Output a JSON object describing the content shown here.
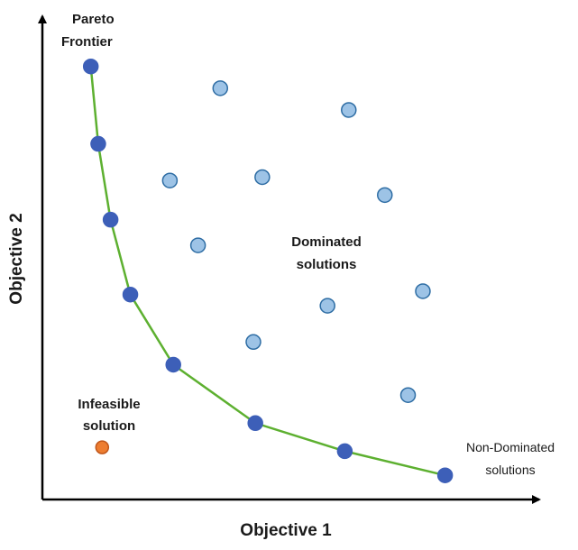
{
  "chart_data": {
    "type": "scatter",
    "title": "",
    "xlabel": "Objective 1",
    "ylabel": "Objective 2",
    "xlim": [
      0,
      100
    ],
    "ylim": [
      0,
      100
    ],
    "grid": false,
    "colors": {
      "axis": "#000000",
      "frontier_line": "#5db030",
      "non_dominated": "#3d5fb8",
      "dominated": "#9dc3e6",
      "dominated_stroke": "#2e6da4",
      "infeasible": "#ed7d31",
      "infeasible_stroke": "#c0561a"
    },
    "series": [
      {
        "name": "Non-Dominated solutions",
        "connected": true,
        "points": [
          {
            "x": 9.8,
            "y": 89.6
          },
          {
            "x": 11.3,
            "y": 73.6
          },
          {
            "x": 13.8,
            "y": 57.9
          },
          {
            "x": 17.8,
            "y": 42.4
          },
          {
            "x": 26.5,
            "y": 27.9
          },
          {
            "x": 43.1,
            "y": 15.8
          },
          {
            "x": 61.2,
            "y": 10.0
          },
          {
            "x": 81.5,
            "y": 5.0
          }
        ]
      },
      {
        "name": "Dominated solutions",
        "connected": false,
        "points": [
          {
            "x": 36.0,
            "y": 85.1
          },
          {
            "x": 62.0,
            "y": 80.6
          },
          {
            "x": 25.8,
            "y": 66.0
          },
          {
            "x": 44.5,
            "y": 66.7
          },
          {
            "x": 69.3,
            "y": 63.0
          },
          {
            "x": 31.5,
            "y": 52.6
          },
          {
            "x": 57.7,
            "y": 40.1
          },
          {
            "x": 77.0,
            "y": 43.1
          },
          {
            "x": 42.7,
            "y": 32.6
          },
          {
            "x": 74.0,
            "y": 21.6
          }
        ]
      },
      {
        "name": "Infeasible solution",
        "connected": false,
        "points": [
          {
            "x": 12.1,
            "y": 10.8
          }
        ]
      }
    ],
    "annotations": {
      "pareto": [
        "Pareto",
        "Frontier"
      ],
      "dominated": [
        "Dominated",
        "solutions"
      ],
      "infeasible": [
        "Infeasible",
        "solution"
      ],
      "non_dominated": [
        "Non-Dominated",
        "solutions"
      ]
    }
  }
}
